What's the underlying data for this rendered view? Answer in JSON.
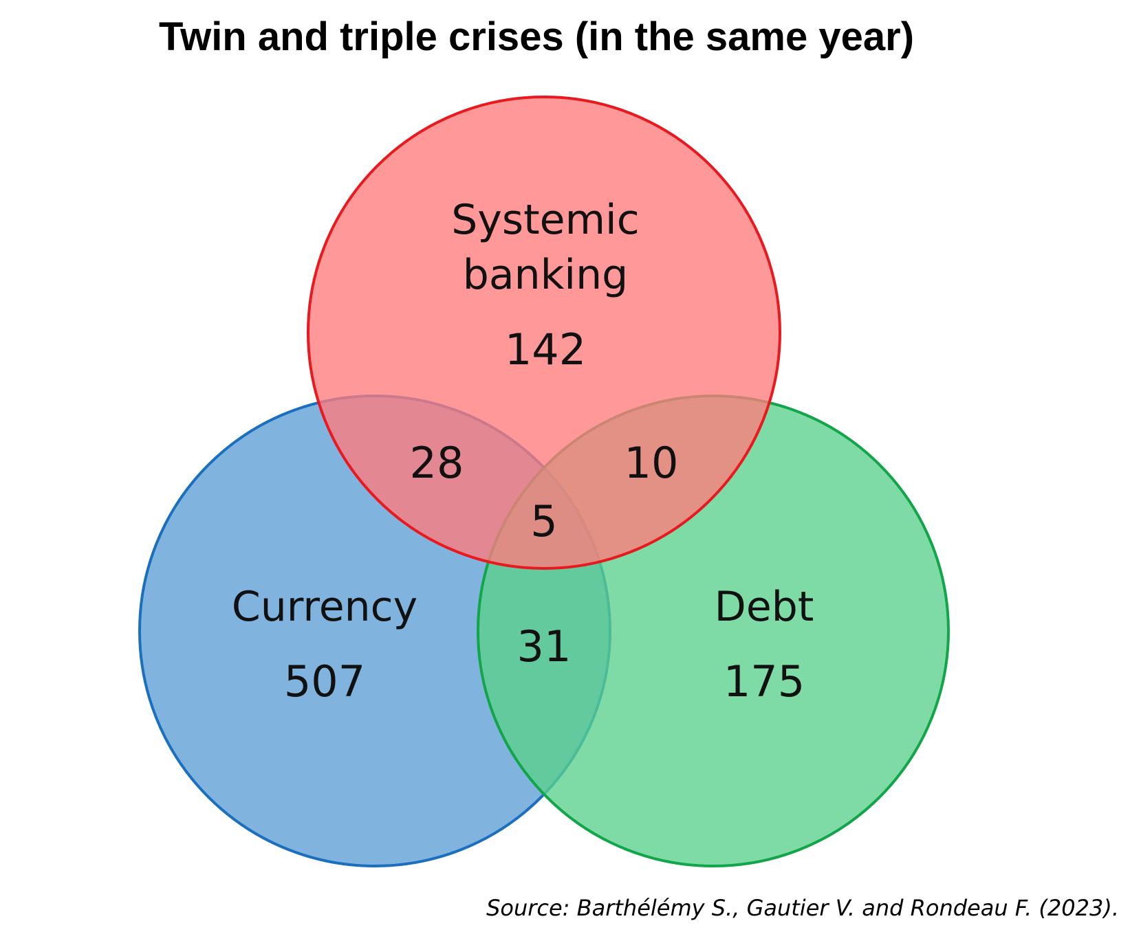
{
  "title": "Twin and triple crises (in the same year)",
  "source": "Source: Barthélémy S., Gautier V. and Rondeau F. (2023).",
  "sets": {
    "banking": {
      "label_line1": "Systemic",
      "label_line2": "banking",
      "count": "142",
      "fill": "#ff7c7c",
      "stroke": "#e8191f"
    },
    "currency": {
      "label": "Currency",
      "count": "507",
      "fill": "#5c9dd5",
      "stroke": "#1a6fbf"
    },
    "debt": {
      "label": "Debt",
      "count": "175",
      "fill": "#5bd18c",
      "stroke": "#12a54a"
    }
  },
  "intersections": {
    "banking_currency": "28",
    "banking_debt": "10",
    "currency_debt": "31",
    "all_three": "5"
  }
}
